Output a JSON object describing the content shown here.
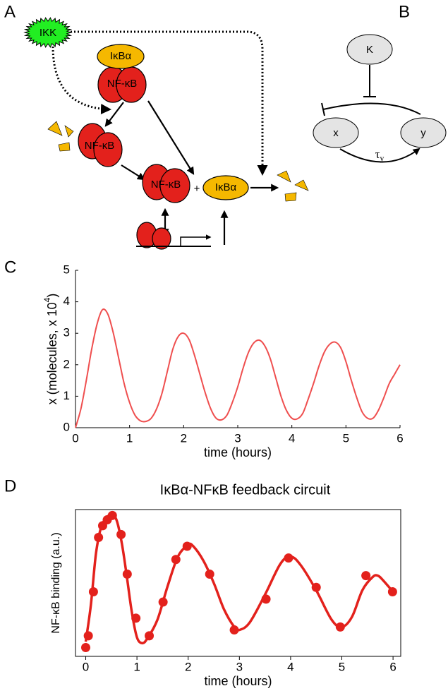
{
  "panel_labels": {
    "a": "A",
    "b": "B",
    "c": "C",
    "d": "D"
  },
  "diagram_a": {
    "ikk": "IKK",
    "ikba_top": "IκBα",
    "nfkb_top": "NF-κB",
    "nfkb_left": "NF-κB",
    "nfkb_center": "NF-κB",
    "plus": "+",
    "ikba_free": "IκBα"
  },
  "diagram_b": {
    "k": "K",
    "x": "x",
    "y": "y",
    "tau": "τ",
    "tau_subscript": "y"
  },
  "chart_data": [
    {
      "type": "line",
      "x": [
        0,
        0.1,
        0.2,
        0.3,
        0.4,
        0.5,
        0.6,
        0.7,
        0.8,
        0.9,
        1,
        1.1,
        1.2,
        1.3,
        1.4,
        1.5,
        1.6,
        1.7,
        1.8,
        1.9,
        2,
        2.1,
        2.2,
        2.3,
        2.4,
        2.5,
        2.6,
        2.7,
        2.8,
        2.9,
        3,
        3.1,
        3.2,
        3.3,
        3.4,
        3.5,
        3.6,
        3.7,
        3.8,
        3.9,
        4,
        4.1,
        4.2,
        4.3,
        4.4,
        4.5,
        4.6,
        4.7,
        4.8,
        4.9,
        5,
        5.1,
        5.2,
        5.3,
        5.4,
        5.5,
        5.6,
        5.7,
        5.8,
        5.9,
        6
      ],
      "series": [
        {
          "color": "#ef4f4f",
          "values": [
            0,
            0.6,
            1.5,
            2.5,
            3.3,
            3.75,
            3.6,
            3,
            2.2,
            1.4,
            0.8,
            0.4,
            0.22,
            0.2,
            0.3,
            0.6,
            1.1,
            1.8,
            2.5,
            2.9,
            3,
            2.8,
            2.3,
            1.7,
            1.1,
            0.6,
            0.3,
            0.25,
            0.4,
            0.8,
            1.3,
            1.9,
            2.4,
            2.7,
            2.78,
            2.6,
            2.2,
            1.6,
            1,
            0.55,
            0.3,
            0.28,
            0.45,
            0.9,
            1.4,
            1.95,
            2.4,
            2.65,
            2.72,
            2.55,
            2.1,
            1.5,
            0.95,
            0.5,
            0.3,
            0.3,
            0.55,
            0.95,
            1.4,
            1.7,
            2
          ]
        }
      ],
      "xlim": [
        0,
        6
      ],
      "ylim": [
        0,
        5
      ],
      "xticks": [
        0,
        1,
        2,
        3,
        4,
        5,
        6
      ],
      "yticks": [
        0,
        1,
        2,
        3,
        4,
        5
      ],
      "x_label": "time (hours)",
      "y_label": [
        "x (molecules, x 10",
        "4",
        ")"
      ]
    },
    {
      "type": "line",
      "title": "IκBα-NFκB feedback circuit",
      "series": [
        {
          "type": "line",
          "color": "#e3211c",
          "x": [
            0,
            0.1,
            0.2,
            0.3,
            0.4,
            0.5,
            0.6,
            0.7,
            0.8,
            0.9,
            1,
            1.1,
            1.2,
            1.4,
            1.6,
            1.8,
            2,
            2.1,
            2.3,
            2.5,
            2.7,
            2.9,
            3,
            3.2,
            3.5,
            3.8,
            4,
            4.2,
            4.5,
            4.8,
            5,
            5.2,
            5.4,
            5.6,
            5.7,
            5.8,
            6
          ],
          "values": [
            0.1,
            0.35,
            0.7,
            0.88,
            0.94,
            0.97,
            0.93,
            0.78,
            0.55,
            0.3,
            0.13,
            0.09,
            0.12,
            0.25,
            0.48,
            0.68,
            0.76,
            0.75,
            0.65,
            0.5,
            0.32,
            0.2,
            0.18,
            0.23,
            0.42,
            0.63,
            0.68,
            0.62,
            0.45,
            0.25,
            0.2,
            0.27,
            0.45,
            0.54,
            0.55,
            0.52,
            0.44
          ]
        },
        {
          "type": "scatter",
          "color": "#e3211c",
          "x": [
            0,
            0.05,
            0.15,
            0.25,
            0.33,
            0.42,
            0.52,
            0.69,
            0.81,
            0.98,
            1.24,
            1.51,
            1.76,
            1.98,
            2.42,
            2.9,
            3.52,
            3.96,
            4.5,
            4.97,
            5.47,
            5.99
          ],
          "values": [
            0.06,
            0.14,
            0.44,
            0.81,
            0.89,
            0.93,
            0.96,
            0.83,
            0.56,
            0.26,
            0.14,
            0.37,
            0.66,
            0.75,
            0.56,
            0.18,
            0.39,
            0.67,
            0.47,
            0.2,
            0.55,
            0.44
          ]
        }
      ],
      "xlim": [
        -0.2,
        6.15
      ],
      "ylim": [
        0,
        1
      ],
      "xticks": [
        0,
        1,
        2,
        3,
        4,
        5,
        6
      ],
      "x_label": "time (hours)",
      "y_label": "NF-κB binding (a.u.)"
    }
  ]
}
